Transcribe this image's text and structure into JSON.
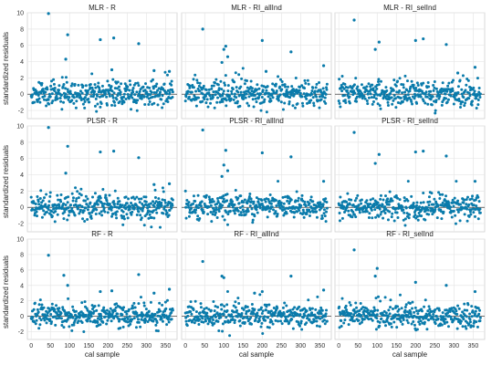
{
  "chart_data": {
    "type": "scatter",
    "rows": 3,
    "cols": 3,
    "ylabel": "standardized residuals",
    "xlabel": "cal sample",
    "xlim": [
      -10,
      380
    ],
    "ylim": [
      -3,
      10
    ],
    "x_ticks": [
      0,
      50,
      100,
      150,
      200,
      250,
      300,
      350
    ],
    "y_ticks": [
      -2,
      0,
      2,
      4,
      6,
      8,
      10
    ],
    "grid": true,
    "reference_line": 0,
    "point_color": "#0a7bab",
    "panels": [
      {
        "title": "MLR - R",
        "outliers": [
          [
            45,
            9.9
          ],
          [
            90,
            4.3
          ],
          [
            95,
            7.3
          ],
          [
            180,
            6.7
          ],
          [
            210,
            3.0
          ],
          [
            215,
            6.9
          ],
          [
            280,
            6.2
          ],
          [
            320,
            2.9
          ],
          [
            360,
            2.8
          ]
        ],
        "seed": 11
      },
      {
        "title": "MLR - RI_allInd",
        "outliers": [
          [
            45,
            8.0
          ],
          [
            95,
            3.9
          ],
          [
            100,
            5.5
          ],
          [
            105,
            5.9
          ],
          [
            110,
            4.6
          ],
          [
            200,
            6.6
          ],
          [
            210,
            2.8
          ],
          [
            275,
            5.2
          ],
          [
            360,
            3.5
          ]
        ],
        "seed": 23
      },
      {
        "title": "MLR - RI_selInd",
        "outliers": [
          [
            40,
            9.1
          ],
          [
            95,
            5.5
          ],
          [
            105,
            6.4
          ],
          [
            200,
            6.6
          ],
          [
            220,
            6.8
          ],
          [
            280,
            6.1
          ],
          [
            310,
            2.6
          ],
          [
            355,
            3.3
          ]
        ],
        "seed": 37
      },
      {
        "title": "PLSR - R",
        "outliers": [
          [
            45,
            9.8
          ],
          [
            90,
            4.2
          ],
          [
            95,
            7.5
          ],
          [
            180,
            6.8
          ],
          [
            215,
            6.9
          ],
          [
            280,
            6.1
          ],
          [
            320,
            2.8
          ],
          [
            360,
            2.9
          ]
        ],
        "seed": 41
      },
      {
        "title": "PLSR - RI_allInd",
        "outliers": [
          [
            45,
            9.5
          ],
          [
            95,
            3.8
          ],
          [
            100,
            5.2
          ],
          [
            105,
            7.0
          ],
          [
            110,
            4.5
          ],
          [
            200,
            6.7
          ],
          [
            275,
            6.2
          ],
          [
            360,
            3.2
          ]
        ],
        "seed": 53
      },
      {
        "title": "PLSR - RI_selInd",
        "outliers": [
          [
            40,
            9.2
          ],
          [
            95,
            5.4
          ],
          [
            105,
            6.5
          ],
          [
            200,
            6.8
          ],
          [
            220,
            6.9
          ],
          [
            280,
            6.3
          ],
          [
            355,
            3.2
          ]
        ],
        "seed": 61
      },
      {
        "title": "RF - R",
        "outliers": [
          [
            45,
            7.9
          ],
          [
            85,
            5.3
          ],
          [
            95,
            4.0
          ],
          [
            180,
            3.2
          ],
          [
            210,
            3.3
          ],
          [
            280,
            5.4
          ],
          [
            320,
            3.0
          ],
          [
            360,
            3.5
          ]
        ],
        "seed": 71
      },
      {
        "title": "RF - RI_allInd",
        "outliers": [
          [
            45,
            7.1
          ],
          [
            95,
            5.2
          ],
          [
            100,
            5.0
          ],
          [
            180,
            3.0
          ],
          [
            200,
            3.2
          ],
          [
            275,
            5.2
          ],
          [
            360,
            3.4
          ]
        ],
        "seed": 83
      },
      {
        "title": "RF - RI_selInd",
        "outliers": [
          [
            40,
            8.6
          ],
          [
            95,
            5.2
          ],
          [
            100,
            6.2
          ],
          [
            200,
            4.4
          ],
          [
            280,
            4.0
          ],
          [
            355,
            3.2
          ]
        ],
        "seed": 97
      }
    ],
    "n_samples": 370
  }
}
